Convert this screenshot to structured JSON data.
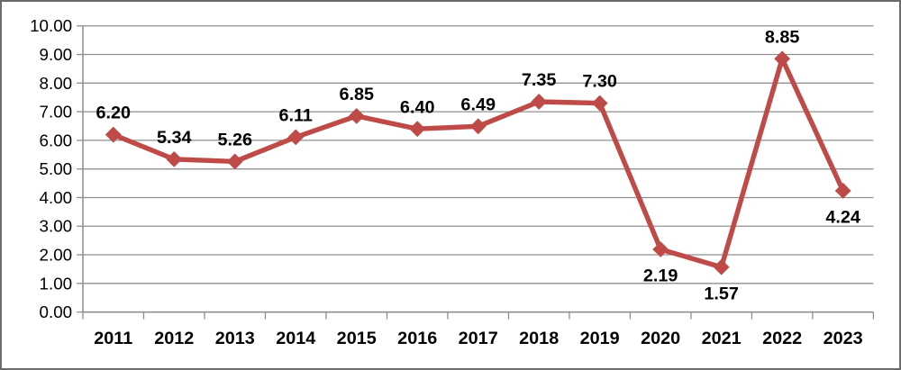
{
  "window": {
    "background": "#ffffff",
    "border_color": "#6b6b6b"
  },
  "chart_data": {
    "type": "line",
    "title": "",
    "xlabel": "",
    "ylabel": "",
    "categories": [
      "2011",
      "2012",
      "2013",
      "2014",
      "2015",
      "2016",
      "2017",
      "2018",
      "2019",
      "2020",
      "2021",
      "2022",
      "2023"
    ],
    "series": [
      {
        "name": "value",
        "values": [
          6.2,
          5.34,
          5.26,
          6.11,
          6.85,
          6.4,
          6.49,
          7.35,
          7.3,
          2.19,
          1.57,
          8.85,
          4.24
        ],
        "color": "#BE4B48",
        "marker": "diamond",
        "line_width": 5.5
      }
    ],
    "data_labels": [
      "6.20",
      "5.34",
      "5.26",
      "6.11",
      "6.85",
      "6.40",
      "6.49",
      "7.35",
      "7.30",
      "2.19",
      "1.57",
      "8.85",
      "4.24"
    ],
    "label_positions": [
      "above",
      "above",
      "above",
      "above",
      "above",
      "above",
      "above",
      "above",
      "above",
      "below",
      "below",
      "above",
      "below"
    ],
    "ylim": [
      0,
      10
    ],
    "y_tick_step": 1,
    "y_tick_labels": [
      "0.00",
      "1.00",
      "2.00",
      "3.00",
      "4.00",
      "5.00",
      "6.00",
      "7.00",
      "8.00",
      "9.00",
      "10.00"
    ],
    "grid": true,
    "legend": "none",
    "gridline_color": "#909090",
    "axis_color": "#8c8c8c",
    "text_color": "#000000"
  }
}
